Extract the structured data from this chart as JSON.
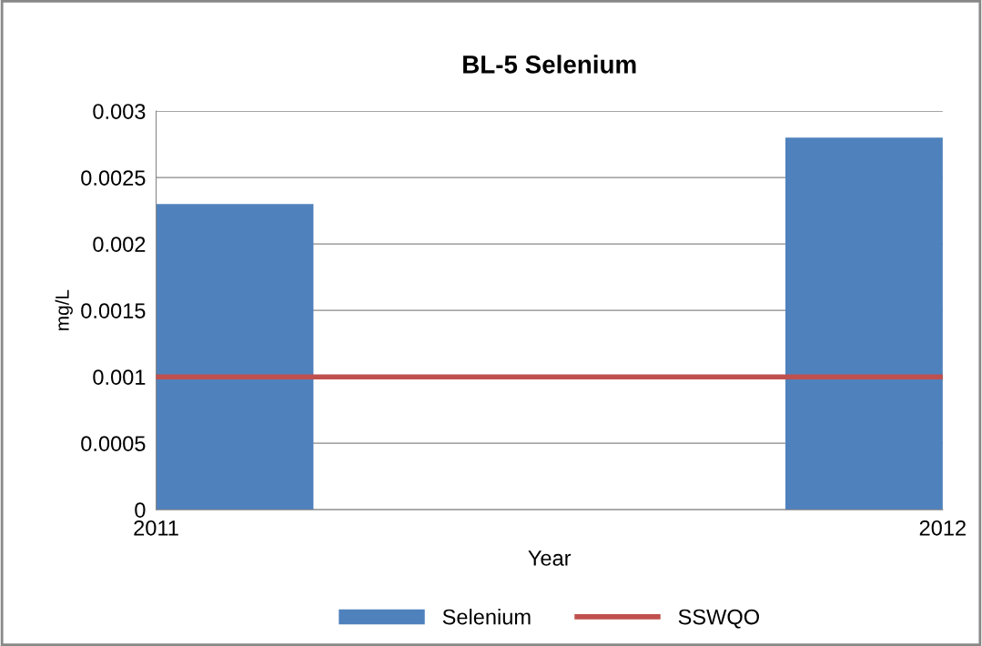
{
  "chart_data": {
    "type": "bar",
    "title": "BL-5 Selenium",
    "xlabel": "Year",
    "ylabel": "mg/L",
    "x": [
      2011,
      2012
    ],
    "series": [
      {
        "name": "Selenium",
        "color": "#4f81bd",
        "values": [
          0.0023,
          0.0028
        ]
      },
      {
        "name": "SSWQO",
        "type": "line",
        "color": "#c0504d",
        "values": [
          0.001,
          0.001
        ]
      }
    ],
    "xlim": [
      2011,
      2012
    ],
    "xticks": [
      2011,
      2012
    ],
    "ylim": [
      0,
      0.003
    ],
    "yticks": [
      0,
      0.0005,
      0.001,
      0.0015,
      0.002,
      0.0025,
      0.003
    ],
    "grid": "y",
    "legend": "bottom"
  }
}
